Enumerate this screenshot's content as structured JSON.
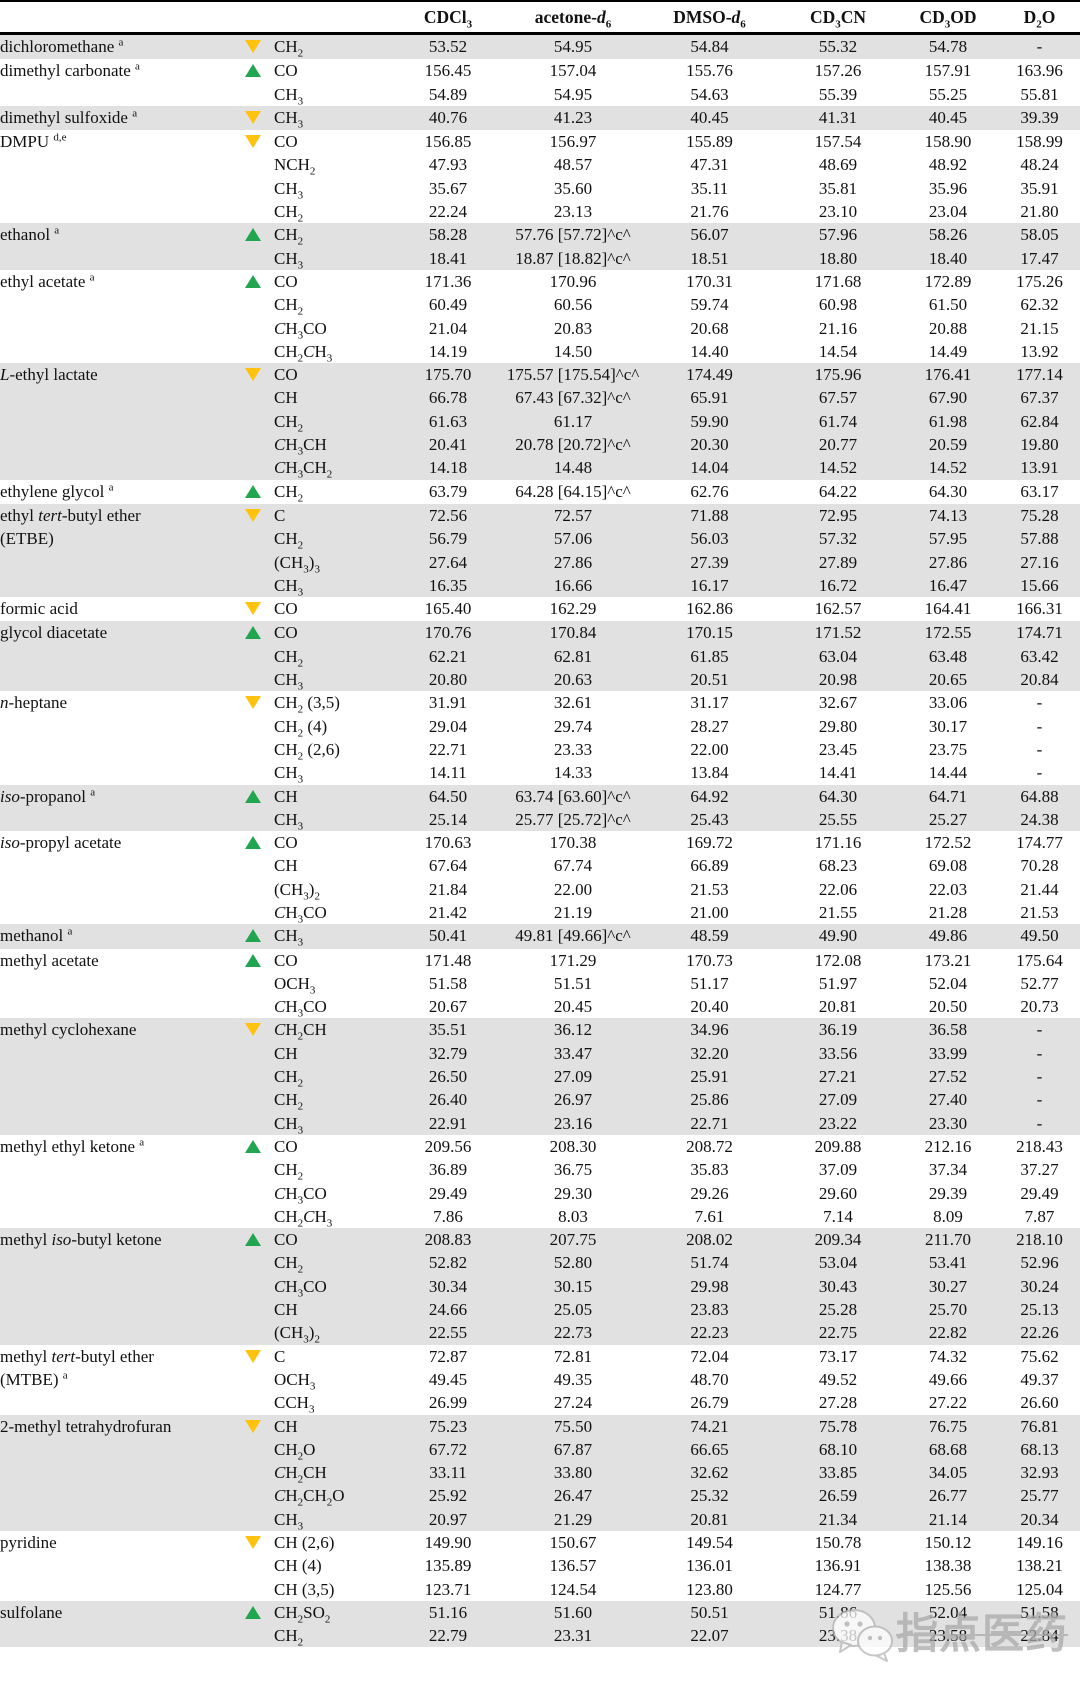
{
  "colors": {
    "trend_up": "#22A550",
    "trend_down": "#FFC20E",
    "row_band": "#E1E1E1"
  },
  "watermark": {
    "text": "指点医药",
    "icon": "wechat-icon"
  },
  "table": {
    "columns": [
      "CDCl~3~",
      "acetone-*d*~6~",
      "DMSO-*d*~6~",
      "CD~3~CN",
      "CD~3~OD",
      "D~2~O"
    ],
    "compounds": [
      {
        "name": "dichloromethane ^a^",
        "trend": "down",
        "rows": [
          {
            "g": "CH~2~",
            "v": [
              "53.52",
              "54.95",
              "54.84",
              "55.32",
              "54.78",
              "-"
            ]
          }
        ]
      },
      {
        "name": "dimethyl carbonate ^a^",
        "trend": "up",
        "rows": [
          {
            "g": "CO",
            "v": [
              "156.45",
              "157.04",
              "155.76",
              "157.26",
              "157.91",
              "163.96"
            ]
          },
          {
            "g": "CH~3~",
            "v": [
              "54.89",
              "54.95",
              "54.63",
              "55.39",
              "55.25",
              "55.81"
            ]
          }
        ]
      },
      {
        "name": "dimethyl sulfoxide ^a^",
        "trend": "down",
        "rows": [
          {
            "g": "CH~3~",
            "v": [
              "40.76",
              "41.23",
              "40.45",
              "41.31",
              "40.45",
              "39.39"
            ]
          }
        ]
      },
      {
        "name": "DMPU ^d,e^",
        "trend": "down",
        "rows": [
          {
            "g": "CO",
            "v": [
              "156.85",
              "156.97",
              "155.89",
              "157.54",
              "158.90",
              "158.99"
            ]
          },
          {
            "g": "NCH~2~",
            "v": [
              "47.93",
              "48.57",
              "47.31",
              "48.69",
              "48.92",
              "48.24"
            ]
          },
          {
            "g": "CH~3~",
            "v": [
              "35.67",
              "35.60",
              "35.11",
              "35.81",
              "35.96",
              "35.91"
            ]
          },
          {
            "g": "CH~2~",
            "v": [
              "22.24",
              "23.13",
              "21.76",
              "23.10",
              "23.04",
              "21.80"
            ]
          }
        ]
      },
      {
        "name": "ethanol ^a^",
        "trend": "up",
        "rows": [
          {
            "g": "CH~2~",
            "v": [
              "58.28",
              "57.76 [57.72]^c^",
              "56.07",
              "57.96",
              "58.26",
              "58.05"
            ]
          },
          {
            "g": "CH~3~",
            "v": [
              "18.41",
              "18.87 [18.82]^c^",
              "18.51",
              "18.80",
              "18.40",
              "17.47"
            ]
          }
        ]
      },
      {
        "name": "ethyl acetate ^a^",
        "trend": "up",
        "rows": [
          {
            "g": "CO",
            "v": [
              "171.36",
              "170.96",
              "170.31",
              "171.68",
              "172.89",
              "175.26"
            ]
          },
          {
            "g": "CH~2~",
            "v": [
              "60.49",
              "60.56",
              "59.74",
              "60.98",
              "61.50",
              "62.32"
            ]
          },
          {
            "g": "*C*H~3~CO",
            "v": [
              "21.04",
              "20.83",
              "20.68",
              "21.16",
              "20.88",
              "21.15"
            ]
          },
          {
            "g": "CH~2~*C*H~3~",
            "v": [
              "14.19",
              "14.50",
              "14.40",
              "14.54",
              "14.49",
              "13.92"
            ]
          }
        ]
      },
      {
        "name": "*L*-ethyl lactate",
        "trend": "down",
        "rows": [
          {
            "g": "CO",
            "v": [
              "175.70",
              "175.57 [175.54]^c^",
              "174.49",
              "175.96",
              "176.41",
              "177.14"
            ]
          },
          {
            "g": "CH",
            "v": [
              "66.78",
              "67.43 [67.32]^c^",
              "65.91",
              "67.57",
              "67.90",
              "67.37"
            ]
          },
          {
            "g": "CH~2~",
            "v": [
              "61.63",
              "61.17",
              "59.90",
              "61.74",
              "61.98",
              "62.84"
            ]
          },
          {
            "g": "*C*H~3~CH",
            "v": [
              "20.41",
              "20.78 [20.72]^c^",
              "20.30",
              "20.77",
              "20.59",
              "19.80"
            ]
          },
          {
            "g": "*C*H~3~CH~2~",
            "v": [
              "14.18",
              "14.48",
              "14.04",
              "14.52",
              "14.52",
              "13.91"
            ]
          }
        ]
      },
      {
        "name": "ethylene glycol ^a^",
        "trend": "up",
        "rows": [
          {
            "g": "CH~2~",
            "v": [
              "63.79",
              "64.28 [64.15]^c^",
              "62.76",
              "64.22",
              "64.30",
              "63.17"
            ]
          }
        ]
      },
      {
        "name": "ethyl *tert*-butyl ether\n(ETBE)",
        "trend": "down",
        "rows": [
          {
            "g": "C",
            "v": [
              "72.56",
              "72.57",
              "71.88",
              "72.95",
              "74.13",
              "75.28"
            ]
          },
          {
            "g": "CH~2~",
            "v": [
              "56.79",
              "57.06",
              "56.03",
              "57.32",
              "57.95",
              "57.88"
            ]
          },
          {
            "g": "(CH~3~)~3~",
            "v": [
              "27.64",
              "27.86",
              "27.39",
              "27.89",
              "27.86",
              "27.16"
            ]
          },
          {
            "g": "CH~3~",
            "v": [
              "16.35",
              "16.66",
              "16.17",
              "16.72",
              "16.47",
              "15.66"
            ]
          }
        ]
      },
      {
        "name": "formic acid",
        "trend": "down",
        "rows": [
          {
            "g": "CO",
            "v": [
              "165.40",
              "162.29",
              "162.86",
              "162.57",
              "164.41",
              "166.31"
            ]
          }
        ]
      },
      {
        "name": "glycol diacetate",
        "trend": "up",
        "rows": [
          {
            "g": "CO",
            "v": [
              "170.76",
              "170.84",
              "170.15",
              "171.52",
              "172.55",
              "174.71"
            ]
          },
          {
            "g": "CH~2~",
            "v": [
              "62.21",
              "62.81",
              "61.85",
              "63.04",
              "63.48",
              "63.42"
            ]
          },
          {
            "g": "CH~3~",
            "v": [
              "20.80",
              "20.63",
              "20.51",
              "20.98",
              "20.65",
              "20.84"
            ]
          }
        ]
      },
      {
        "name": "*n*-heptane",
        "trend": "down",
        "rows": [
          {
            "g": "CH~2~ (3,5)",
            "v": [
              "31.91",
              "32.61",
              "31.17",
              "32.67",
              "33.06",
              "-"
            ]
          },
          {
            "g": "CH~2~ (4)",
            "v": [
              "29.04",
              "29.74",
              "28.27",
              "29.80",
              "30.17",
              "-"
            ]
          },
          {
            "g": "CH~2~ (2,6)",
            "v": [
              "22.71",
              "23.33",
              "22.00",
              "23.45",
              "23.75",
              "-"
            ]
          },
          {
            "g": "CH~3~",
            "v": [
              "14.11",
              "14.33",
              "13.84",
              "14.41",
              "14.44",
              "-"
            ]
          }
        ]
      },
      {
        "name": "*iso*-propanol ^a^",
        "trend": "up",
        "rows": [
          {
            "g": "CH",
            "v": [
              "64.50",
              "63.74 [63.60]^c^",
              "64.92",
              "64.30",
              "64.71",
              "64.88"
            ]
          },
          {
            "g": "CH~3~",
            "v": [
              "25.14",
              "25.77 [25.72]^c^",
              "25.43",
              "25.55",
              "25.27",
              "24.38"
            ]
          }
        ]
      },
      {
        "name": "*iso*-propyl acetate",
        "trend": "up",
        "rows": [
          {
            "g": "CO",
            "v": [
              "170.63",
              "170.38",
              "169.72",
              "171.16",
              "172.52",
              "174.77"
            ]
          },
          {
            "g": "CH",
            "v": [
              "67.64",
              "67.74",
              "66.89",
              "68.23",
              "69.08",
              "70.28"
            ]
          },
          {
            "g": "(CH~3~)~2~",
            "v": [
              "21.84",
              "22.00",
              "21.53",
              "22.06",
              "22.03",
              "21.44"
            ]
          },
          {
            "g": "*C*H~3~CO",
            "v": [
              "21.42",
              "21.19",
              "21.00",
              "21.55",
              "21.28",
              "21.53"
            ]
          }
        ]
      },
      {
        "name": "methanol ^a^",
        "trend": "up",
        "rows": [
          {
            "g": "CH~3~",
            "v": [
              "50.41",
              "49.81 [49.66]^c^",
              "48.59",
              "49.90",
              "49.86",
              "49.50"
            ]
          }
        ]
      },
      {
        "name": "methyl acetate",
        "trend": "up",
        "rows": [
          {
            "g": "CO",
            "v": [
              "171.48",
              "171.29",
              "170.73",
              "172.08",
              "173.21",
              "175.64"
            ]
          },
          {
            "g": "OCH~3~",
            "v": [
              "51.58",
              "51.51",
              "51.17",
              "51.97",
              "52.04",
              "52.77"
            ]
          },
          {
            "g": "*C*H~3~CO",
            "v": [
              "20.67",
              "20.45",
              "20.40",
              "20.81",
              "20.50",
              "20.73"
            ]
          }
        ]
      },
      {
        "name": "methyl cyclohexane",
        "trend": "down",
        "rows": [
          {
            "g": "*C*H~2~CH",
            "v": [
              "35.51",
              "36.12",
              "34.96",
              "36.19",
              "36.58",
              "-"
            ]
          },
          {
            "g": "CH",
            "v": [
              "32.79",
              "33.47",
              "32.20",
              "33.56",
              "33.99",
              "-"
            ]
          },
          {
            "g": "CH~2~",
            "v": [
              "26.50",
              "27.09",
              "25.91",
              "27.21",
              "27.52",
              "-"
            ]
          },
          {
            "g": "CH~2~",
            "v": [
              "26.40",
              "26.97",
              "25.86",
              "27.09",
              "27.40",
              "-"
            ]
          },
          {
            "g": "CH~3~",
            "v": [
              "22.91",
              "23.16",
              "22.71",
              "23.22",
              "23.30",
              "-"
            ]
          }
        ]
      },
      {
        "name": "methyl ethyl ketone ^a^",
        "trend": "up",
        "rows": [
          {
            "g": "CO",
            "v": [
              "209.56",
              "208.30",
              "208.72",
              "209.88",
              "212.16",
              "218.43"
            ]
          },
          {
            "g": "CH~2~",
            "v": [
              "36.89",
              "36.75",
              "35.83",
              "37.09",
              "37.34",
              "37.27"
            ]
          },
          {
            "g": "*C*H~3~CO",
            "v": [
              "29.49",
              "29.30",
              "29.26",
              "29.60",
              "29.39",
              "29.49"
            ]
          },
          {
            "g": "CH~2~*C*H~3~",
            "v": [
              "7.86",
              "8.03",
              "7.61",
              "7.14",
              "8.09",
              "7.87"
            ]
          }
        ]
      },
      {
        "name": "methyl *iso*-butyl ketone",
        "trend": "up",
        "rows": [
          {
            "g": "CO",
            "v": [
              "208.83",
              "207.75",
              "208.02",
              "209.34",
              "211.70",
              "218.10"
            ]
          },
          {
            "g": "CH~2~",
            "v": [
              "52.82",
              "52.80",
              "51.74",
              "53.04",
              "53.41",
              "52.96"
            ]
          },
          {
            "g": "*C*H~3~CO",
            "v": [
              "30.34",
              "30.15",
              "29.98",
              "30.43",
              "30.27",
              "30.24"
            ]
          },
          {
            "g": "CH",
            "v": [
              "24.66",
              "25.05",
              "23.83",
              "25.28",
              "25.70",
              "25.13"
            ]
          },
          {
            "g": "(CH~3~)~2~",
            "v": [
              "22.55",
              "22.73",
              "22.23",
              "22.75",
              "22.82",
              "22.26"
            ]
          }
        ]
      },
      {
        "name": "methyl *tert*-butyl ether\n(MTBE) ^a^",
        "trend": "down",
        "rows": [
          {
            "g": "C",
            "v": [
              "72.87",
              "72.81",
              "72.04",
              "73.17",
              "74.32",
              "75.62"
            ]
          },
          {
            "g": "OCH~3~",
            "v": [
              "49.45",
              "49.35",
              "48.70",
              "49.52",
              "49.66",
              "49.37"
            ]
          },
          {
            "g": "CCH~3~",
            "v": [
              "26.99",
              "27.24",
              "26.79",
              "27.28",
              "27.22",
              "26.60"
            ]
          }
        ]
      },
      {
        "name": "2-methyl tetrahydrofuran",
        "trend": "down",
        "rows": [
          {
            "g": "CH",
            "v": [
              "75.23",
              "75.50",
              "74.21",
              "75.78",
              "76.75",
              "76.81"
            ]
          },
          {
            "g": "CH~2~O",
            "v": [
              "67.72",
              "67.87",
              "66.65",
              "68.10",
              "68.68",
              "68.13"
            ]
          },
          {
            "g": "*C*H~2~CH",
            "v": [
              "33.11",
              "33.80",
              "32.62",
              "33.85",
              "34.05",
              "32.93"
            ]
          },
          {
            "g": "*C*H~2~CH~2~O",
            "v": [
              "25.92",
              "26.47",
              "25.32",
              "26.59",
              "26.77",
              "25.77"
            ]
          },
          {
            "g": "CH~3~",
            "v": [
              "20.97",
              "21.29",
              "20.81",
              "21.34",
              "21.14",
              "20.34"
            ]
          }
        ]
      },
      {
        "name": "pyridine",
        "trend": "down",
        "rows": [
          {
            "g": "CH (2,6)",
            "v": [
              "149.90",
              "150.67",
              "149.54",
              "150.78",
              "150.12",
              "149.16"
            ]
          },
          {
            "g": "CH (4)",
            "v": [
              "135.89",
              "136.57",
              "136.01",
              "136.91",
              "138.38",
              "138.21"
            ]
          },
          {
            "g": "CH (3,5)",
            "v": [
              "123.71",
              "124.54",
              "123.80",
              "124.77",
              "125.56",
              "125.04"
            ]
          }
        ]
      },
      {
        "name": "sulfolane",
        "trend": "up",
        "rows": [
          {
            "g": "CH~2~SO~2~",
            "v": [
              "51.16",
              "51.60",
              "50.51",
              "51.86",
              "52.04",
              "51.58"
            ]
          },
          {
            "g": "CH~2~",
            "v": [
              "22.79",
              "23.31",
              "22.07",
              "23.38",
              "23.58",
              "22.84"
            ]
          }
        ]
      }
    ]
  }
}
